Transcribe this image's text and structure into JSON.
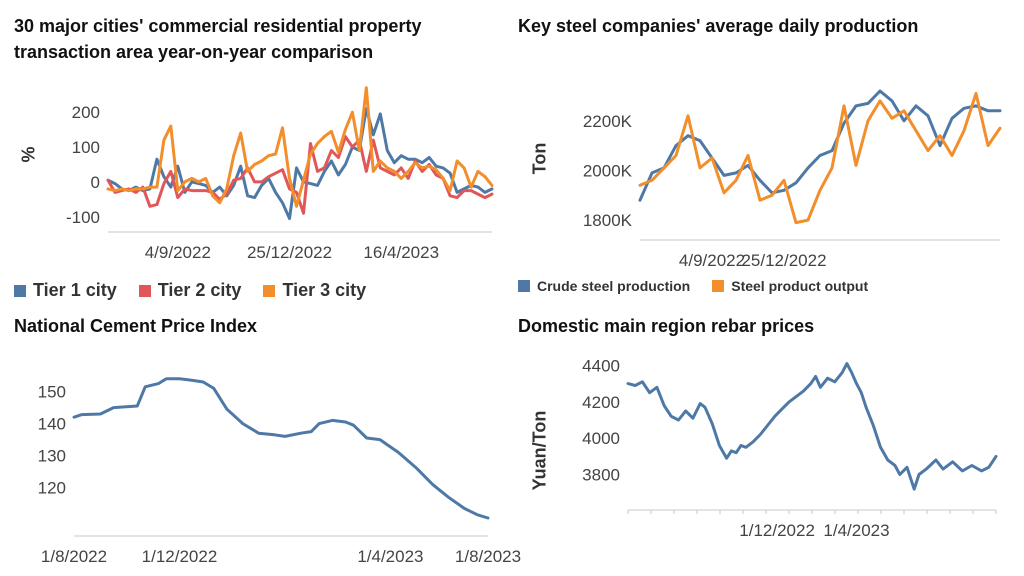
{
  "colors": {
    "tier1": "#4e79a7",
    "tier2": "#e15759",
    "tier3": "#f28e2b",
    "crude": "#4e79a7",
    "steel": "#f28e2b",
    "cement": "#4e79a7",
    "rebar": "#4e79a7",
    "axis": "#c8c8c8"
  },
  "chart_data": [
    {
      "type": "line",
      "title": "30 major cities' commercial residential property transaction area year-on-year comparison",
      "title_lines": [
        "30 major cities' commercial residential property",
        "transaction area year-on-year comparison"
      ],
      "ylabel": "%",
      "ylim": [
        -115,
        275
      ],
      "yticks": [
        -100,
        0,
        100,
        200
      ],
      "xtick_labels": [
        "4/9/2022",
        "25/12/2022",
        "16/4/2023"
      ],
      "xtick_index": [
        10,
        26,
        42
      ],
      "legend": [
        "Tier 1 city",
        "Tier 2 city",
        "Tier 3 city"
      ],
      "series": [
        {
          "name": "Tier 1 city",
          "values": [
            5,
            -5,
            -20,
            -25,
            -15,
            -25,
            -20,
            65,
            15,
            -15,
            45,
            -30,
            0,
            -5,
            -10,
            -30,
            -15,
            -40,
            -10,
            45,
            -40,
            -45,
            -10,
            10,
            -30,
            -60,
            -105,
            40,
            0,
            -5,
            -10,
            30,
            60,
            20,
            50,
            100,
            90,
            210,
            135,
            195,
            90,
            55,
            75,
            65,
            65,
            55,
            70,
            45,
            40,
            25,
            -30,
            -20,
            -10,
            -15,
            -30,
            -20
          ]
        },
        {
          "name": "Tier 2 city",
          "values": [
            5,
            -30,
            -25,
            -20,
            -30,
            -15,
            -70,
            -65,
            -5,
            30,
            -45,
            -20,
            -25,
            -25,
            -25,
            -30,
            -50,
            -35,
            5,
            10,
            40,
            0,
            0,
            15,
            25,
            35,
            -20,
            -30,
            -90,
            110,
            30,
            40,
            90,
            70,
            130,
            100,
            120,
            30,
            120,
            40,
            30,
            20,
            40,
            10,
            60,
            30,
            50,
            20,
            10,
            -40,
            -45,
            -25,
            -25,
            -35,
            -45,
            -35
          ]
        },
        {
          "name": "Tier 3 city",
          "values": [
            -20,
            -25,
            -20,
            -25,
            -20,
            -20,
            -15,
            -15,
            120,
            160,
            -25,
            0,
            10,
            0,
            10,
            -40,
            -60,
            -20,
            75,
            140,
            30,
            50,
            60,
            75,
            80,
            155,
            10,
            -70,
            5,
            80,
            110,
            130,
            145,
            85,
            150,
            200,
            90,
            270,
            30,
            60,
            40,
            30,
            10,
            30,
            55,
            40,
            45,
            35,
            10,
            -25,
            60,
            40,
            -15,
            30,
            15,
            -10
          ]
        }
      ]
    },
    {
      "type": "line",
      "title": "Key steel companies' average daily production",
      "ylabel": "Ton",
      "ylim": [
        1760,
        2340
      ],
      "yticks": [
        1800,
        2000,
        2200
      ],
      "ytick_labels": [
        "1800K",
        "2000K",
        "2200K"
      ],
      "xtick_labels": [
        "4/9/2022",
        "25/12/2022"
      ],
      "xtick_index": [
        6,
        12
      ],
      "legend": [
        "Crude steel production",
        "Steel product output"
      ],
      "series": [
        {
          "name": "Crude steel production",
          "values": [
            1880,
            1990,
            2010,
            2100,
            2140,
            2120,
            2050,
            1980,
            1990,
            2020,
            1960,
            1910,
            1920,
            1950,
            2010,
            2060,
            2080,
            2190,
            2260,
            2270,
            2320,
            2280,
            2200,
            2260,
            2220,
            2100,
            2210,
            2250,
            2260,
            2240,
            2240
          ]
        },
        {
          "name": "Steel product output",
          "values": [
            1940,
            1960,
            2010,
            2060,
            2220,
            2010,
            2050,
            1910,
            1960,
            2060,
            1880,
            1900,
            1960,
            1790,
            1800,
            1920,
            2010,
            2260,
            2020,
            2200,
            2280,
            2210,
            2240,
            2160,
            2080,
            2140,
            2060,
            2160,
            2310,
            2100,
            2170
          ]
        }
      ]
    },
    {
      "type": "line",
      "title": "National Cement Price Index",
      "ylim": [
        108,
        158
      ],
      "yticks": [
        120,
        130,
        140,
        150
      ],
      "xtick_labels": [
        "1/8/2022",
        "1/12/2022",
        "1/4/2023",
        "1/8/2023"
      ],
      "xtick_index": [
        0,
        4,
        8,
        12
      ],
      "x_months": 12.6,
      "series": [
        {
          "name": "",
          "points": [
            [
              0,
              142
            ],
            [
              0.3,
              142.8
            ],
            [
              1.0,
              143.0
            ],
            [
              1.5,
              145
            ],
            [
              2.4,
              145.5
            ],
            [
              2.7,
              151.5
            ],
            [
              3.2,
              152.5
            ],
            [
              3.5,
              154.0
            ],
            [
              4.0,
              154.0
            ],
            [
              4.5,
              153.5
            ],
            [
              4.9,
              153.0
            ],
            [
              5.3,
              151.0
            ],
            [
              5.8,
              144.5
            ],
            [
              6.4,
              140.0
            ],
            [
              7.0,
              137.0
            ],
            [
              7.6,
              136.5
            ],
            [
              8.0,
              136.0
            ],
            [
              8.6,
              137.0
            ],
            [
              9.0,
              137.5
            ],
            [
              9.3,
              140.0
            ],
            [
              9.8,
              141.0
            ],
            [
              10.3,
              140.5
            ],
            [
              10.6,
              139.5
            ],
            [
              11.1,
              135.5
            ],
            [
              11.6,
              135.0
            ],
            [
              12.3,
              131.0
            ],
            [
              13.0,
              126.0
            ],
            [
              13.6,
              121.0
            ],
            [
              14.2,
              117.0
            ],
            [
              14.8,
              113.5
            ],
            [
              15.3,
              111.5
            ],
            [
              15.7,
              110.5
            ]
          ]
        }
      ]
    },
    {
      "type": "line",
      "title": "Domestic main region rebar prices",
      "ylabel": "Yuan/Ton",
      "ylim": [
        3660,
        4430
      ],
      "yticks": [
        3800,
        4000,
        4200,
        4400
      ],
      "xtick_labels": [
        "1/12/2022",
        "1/4/2023"
      ],
      "xtick_index": [
        5,
        9
      ],
      "x_months": 16,
      "series": [
        {
          "name": "",
          "points": [
            [
              0,
              4300
            ],
            [
              0.3,
              4290
            ],
            [
              0.6,
              4310
            ],
            [
              0.9,
              4250
            ],
            [
              1.2,
              4280
            ],
            [
              1.5,
              4180
            ],
            [
              1.8,
              4120
            ],
            [
              2.1,
              4100
            ],
            [
              2.4,
              4150
            ],
            [
              2.7,
              4110
            ],
            [
              3.0,
              4190
            ],
            [
              3.2,
              4170
            ],
            [
              3.5,
              4080
            ],
            [
              3.8,
              3960
            ],
            [
              4.1,
              3890
            ],
            [
              4.3,
              3930
            ],
            [
              4.5,
              3920
            ],
            [
              4.7,
              3960
            ],
            [
              4.9,
              3950
            ],
            [
              5.2,
              3980
            ],
            [
              5.5,
              4020
            ],
            [
              5.8,
              4070
            ],
            [
              6.1,
              4120
            ],
            [
              6.4,
              4160
            ],
            [
              6.7,
              4200
            ],
            [
              7.0,
              4230
            ],
            [
              7.3,
              4260
            ],
            [
              7.6,
              4300
            ],
            [
              7.8,
              4340
            ],
            [
              8.0,
              4280
            ],
            [
              8.3,
              4330
            ],
            [
              8.6,
              4310
            ],
            [
              8.9,
              4360
            ],
            [
              9.1,
              4410
            ],
            [
              9.3,
              4360
            ],
            [
              9.5,
              4300
            ],
            [
              9.7,
              4250
            ],
            [
              9.9,
              4170
            ],
            [
              10.2,
              4070
            ],
            [
              10.5,
              3950
            ],
            [
              10.8,
              3880
            ],
            [
              11.1,
              3850
            ],
            [
              11.3,
              3800
            ],
            [
              11.6,
              3840
            ],
            [
              11.9,
              3720
            ],
            [
              12.1,
              3800
            ],
            [
              12.4,
              3830
            ],
            [
              12.8,
              3880
            ],
            [
              13.1,
              3830
            ],
            [
              13.5,
              3870
            ],
            [
              13.9,
              3820
            ],
            [
              14.3,
              3850
            ],
            [
              14.7,
              3820
            ],
            [
              15.0,
              3840
            ],
            [
              15.3,
              3900
            ]
          ]
        }
      ]
    }
  ]
}
